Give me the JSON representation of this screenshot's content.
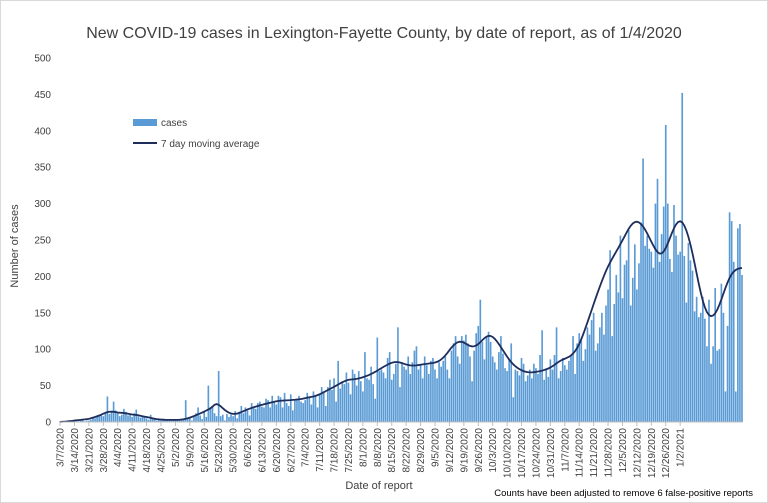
{
  "chart_data": {
    "type": "bar",
    "title": "New COVID-19 cases in Lexington-Fayette County, by date of report, as of 1/4/2020",
    "xlabel": "Date of report",
    "ylabel": "Number of cases",
    "ylim": [
      0,
      500
    ],
    "yticks": [
      "0",
      "50",
      "100",
      "150",
      "200",
      "250",
      "300",
      "350",
      "400",
      "450",
      "500"
    ],
    "xtick_labels": [
      "3/7/2020",
      "3/14/2020",
      "3/21/2020",
      "3/28/2020",
      "4/4/2020",
      "4/11/2020",
      "4/18/2020",
      "4/25/2020",
      "5/2/2020",
      "5/9/2020",
      "5/16/2020",
      "5/23/2020",
      "5/30/2020",
      "6/6/2020",
      "6/13/2020",
      "6/20/2020",
      "6/27/2020",
      "7/4/2020",
      "7/11/2020",
      "7/18/2020",
      "7/25/2020",
      "8/1/2020",
      "8/8/2020",
      "8/15/2020",
      "8/22/2020",
      "8/29/2020",
      "9/5/2020",
      "9/12/2020",
      "9/19/2020",
      "9/26/2020",
      "10/3/2020",
      "10/10/2020",
      "10/17/2020",
      "10/24/2020",
      "10/31/2020",
      "11/7/2020",
      "11/14/2020",
      "11/21/2020",
      "11/28/2020",
      "12/5/2020",
      "12/12/2020",
      "12/19/2020",
      "12/26/2020",
      "1/2/2021"
    ],
    "grid": false,
    "legend_position": "upper-left",
    "note": "Counts have been adjusted to remove 6 false-positive reports",
    "colors": {
      "bars": "#5b9bd5",
      "line": "#1f2d5c",
      "text": "#404040",
      "axis": "#bfbfbf"
    },
    "series": [
      {
        "name": "cases",
        "type": "bar",
        "values": [
          1,
          0,
          0,
          0,
          1,
          0,
          0,
          0,
          1,
          1,
          2,
          2,
          1,
          2,
          2,
          3,
          6,
          5,
          7,
          8,
          9,
          8,
          12,
          35,
          11,
          15,
          28,
          16,
          12,
          8,
          10,
          18,
          14,
          9,
          10,
          7,
          12,
          17,
          8,
          6,
          9,
          6,
          5,
          3,
          10,
          6,
          4,
          2,
          5,
          3,
          3,
          2,
          3,
          4,
          2,
          3,
          4,
          3,
          2,
          3,
          4,
          30,
          6,
          5,
          2,
          8,
          12,
          20,
          9,
          4,
          14,
          7,
          50,
          20,
          21,
          12,
          8,
          70,
          8,
          10,
          2,
          11,
          7,
          10,
          8,
          15,
          5,
          14,
          22,
          12,
          20,
          16,
          9,
          26,
          20,
          18,
          26,
          28,
          21,
          20,
          32,
          30,
          20,
          36,
          28,
          24,
          36,
          34,
          20,
          40,
          26,
          22,
          38,
          16,
          30,
          32,
          36,
          28,
          26,
          30,
          40,
          34,
          24,
          42,
          36,
          20,
          38,
          48,
          40,
          22,
          48,
          58,
          44,
          60,
          28,
          84,
          46,
          56,
          52,
          68,
          54,
          38,
          72,
          66,
          50,
          70,
          56,
          42,
          96,
          60,
          58,
          76,
          52,
          32,
          116,
          70,
          72,
          68,
          60,
          88,
          96,
          58,
          66,
          80,
          130,
          48,
          82,
          76,
          72,
          90,
          66,
          82,
          98,
          104,
          72,
          80,
          60,
          90,
          78,
          66,
          84,
          88,
          72,
          60,
          82,
          76,
          84,
          90,
          72,
          60,
          98,
          108,
          118,
          90,
          80,
          118,
          112,
          120,
          108,
          90,
          56,
          98,
          122,
          132,
          168,
          110,
          86,
          116,
          124,
          110,
          90,
          82,
          72,
          96,
          118,
          94,
          74,
          70,
          86,
          108,
          34,
          72,
          70,
          64,
          88,
          80,
          56,
          64,
          72,
          60,
          80,
          74,
          66,
          92,
          126,
          58,
          74,
          62,
          86,
          72,
          92,
          130,
          60,
          70,
          88,
          78,
          72,
          84,
          92,
          118,
          66,
          108,
          122,
          112,
          84,
          100,
          130,
          120,
          140,
          150,
          98,
          108,
          130,
          150,
          120,
          160,
          182,
          236,
          118,
          162,
          202,
          178,
          256,
          170,
          216,
          222,
          264,
          160,
          198,
          244,
          182,
          218,
          274,
          362,
          242,
          256,
          238,
          234,
          212,
          300,
          334,
          220,
          258,
          296,
          408,
          300,
          224,
          206,
          298,
          256,
          230,
          234,
          452,
          228,
          164,
          246,
          222,
          208,
          152,
          172,
          144,
          150,
          172,
          142,
          104,
          168,
          80,
          104,
          184,
          98,
          100,
          190,
          150,
          42,
          132,
          288,
          276,
          220,
          42,
          266,
          272,
          202
        ]
      },
      {
        "name": "7 day moving average",
        "type": "line",
        "values": [
          0.1,
          0.3,
          0.5,
          0.7,
          1,
          1.3,
          1.6,
          2,
          2.3,
          2.6,
          2.9,
          3.3,
          3.6,
          4,
          4.3,
          5.1,
          6,
          6.9,
          7.9,
          8.9,
          10.1,
          11.4,
          12.6,
          13.5,
          14.1,
          14.2,
          14,
          13.6,
          13.1,
          12.8,
          12.6,
          12.3,
          11.9,
          11.4,
          10.8,
          10.3,
          10,
          9.7,
          9.2,
          8.6,
          7.9,
          7.3,
          6.8,
          6.3,
          5.7,
          5,
          4.4,
          3.9,
          3.6,
          3.4,
          3.2,
          3,
          2.9,
          2.9,
          2.9,
          2.9,
          2.9,
          2.9,
          3.1,
          3.4,
          3.8,
          4.4,
          5.1,
          6,
          7,
          8.1,
          9.3,
          10.5,
          11.8,
          13,
          14.4,
          15.8,
          17.3,
          18.9,
          21.1,
          23.6,
          24.6,
          23.7,
          21.5,
          18.9,
          16.5,
          14.4,
          12.8,
          11.7,
          11.2,
          11.2,
          11.6,
          12.5,
          13.6,
          14.9,
          16.1,
          17.3,
          18.3,
          19.3,
          20.2,
          21.1,
          22,
          22.9,
          23.6,
          24.3,
          25,
          25.8,
          26.5,
          27.2,
          27.9,
          28.5,
          28.9,
          29.2,
          29.4,
          29.6,
          29.7,
          29.9,
          30.1,
          30.4,
          30.6,
          30.9,
          31.2,
          31.6,
          32.1,
          32.7,
          33.4,
          34,
          34.5,
          35.1,
          35.9,
          36.9,
          38.1,
          39.4,
          40.9,
          42.4,
          43.9,
          45.4,
          46.8,
          48.3,
          49.9,
          51.5,
          53.1,
          54.6,
          55.9,
          57.1,
          57.9,
          58.4,
          58.6,
          58.9,
          59.3,
          59.9,
          60.6,
          61.5,
          62.5,
          63.5,
          64.7,
          66,
          67.4,
          68.9,
          70.6,
          72.3,
          74,
          75.7,
          77.3,
          78.8,
          80.2,
          81.3,
          82.1,
          82.4,
          82.3,
          81.7,
          80.9,
          79.9,
          79,
          78.3,
          77.8,
          77.6,
          77.6,
          77.8,
          78.2,
          78.6,
          79.1,
          79.5,
          79.9,
          80.3,
          80.7,
          81.1,
          81.7,
          82.6,
          84,
          85.9,
          88.4,
          91.4,
          94.9,
          98.6,
          102.2,
          105.3,
          107.8,
          109.5,
          110.3,
          110.1,
          109.1,
          107.5,
          105.8,
          104.5,
          103.8,
          104,
          105.2,
          107.1,
          109.7,
          112.5,
          115.2,
          117.3,
          118.4,
          118.2,
          116.8,
          114.3,
          110.9,
          107,
          102.8,
          98.4,
          94.1,
          89.8,
          85.8,
          82.2,
          79.2,
          76.6,
          74.4,
          72.6,
          71.1,
          69.9,
          69.1,
          68.5,
          68.2,
          68.2,
          68.4,
          68.8,
          69.3,
          69.9,
          70.6,
          71.4,
          72.4,
          73.5,
          74.9,
          76.6,
          78.5,
          80.6,
          82.6,
          84.3,
          85.7,
          86.9,
          88.1,
          89.5,
          91.4,
          94,
          97.4,
          101.8,
          107.3,
          113.7,
          121,
          128.8,
          136.9,
          145.2,
          153.5,
          161.9,
          170.1,
          178.1,
          185.9,
          193.4,
          200.6,
          207.4,
          213.6,
          219.2,
          224.4,
          229.4,
          234.3,
          239.3,
          244.4,
          249.6,
          254.9,
          260.3,
          265.3,
          269.5,
          272.7,
          274.6,
          275.1,
          274.2,
          271.9,
          268.5,
          264.1,
          259,
          253.4,
          247.7,
          242.1,
          237.2,
          233.5,
          231.4,
          231.6,
          234.1,
          238.8,
          245.2,
          252.4,
          259.6,
          266.2,
          271.4,
          274.7,
          275.7,
          274.1,
          269.9,
          263.2,
          254.3,
          243.6,
          231.3,
          217.9,
          204,
          190.3,
          177.6,
          166.5,
          157.5,
          150.9,
          146.9,
          145.4,
          146.3,
          149.3,
          154.3,
          160.8,
          168.4,
          176.4,
          184.3,
          191.6,
          197.9,
          202.9,
          206.5,
          208.9,
          210.4,
          211.2,
          211.6
        ]
      }
    ]
  }
}
